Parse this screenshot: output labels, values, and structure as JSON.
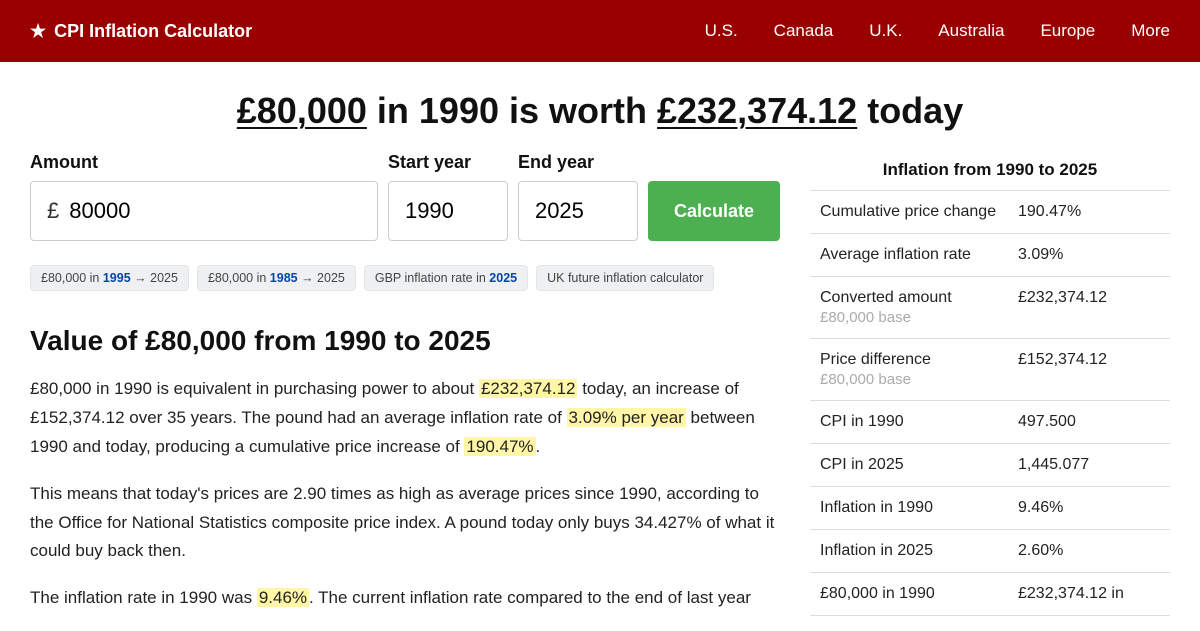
{
  "brand": {
    "star": "★",
    "name": "CPI Inflation Calculator"
  },
  "nav": [
    "U.S.",
    "Canada",
    "U.K.",
    "Australia",
    "Europe",
    "More"
  ],
  "headline": {
    "amount": "£80,000",
    "mid": " in 1990 is worth ",
    "value": "£232,374.12",
    "tail": " today"
  },
  "form": {
    "amount_label": "Amount",
    "currency": "£",
    "amount_value": "80000",
    "start_label": "Start year",
    "start_value": "1990",
    "end_label": "End year",
    "end_value": "2025",
    "button": "Calculate"
  },
  "chips": [
    {
      "pre": "£80,000 in ",
      "b": "1995",
      "post": " → 2025"
    },
    {
      "pre": "£80,000 in ",
      "b": "1985",
      "post": " → 2025"
    },
    {
      "pre": "GBP inflation rate in ",
      "b": "2025",
      "post": ""
    },
    {
      "pre": "UK future inflation calculator",
      "b": "",
      "post": ""
    }
  ],
  "section_title": "Value of £80,000 from 1990 to 2025",
  "para1": {
    "a": "£80,000 in 1990 is equivalent in purchasing power to about ",
    "h1": "£232,374.12",
    "b": " today, an increase of £152,374.12 over 35 years. The pound had an average inflation rate of ",
    "h2": "3.09% per year",
    "c": " between 1990 and today, producing a cumulative price increase of ",
    "h3": "190.47%",
    "d": "."
  },
  "para2": "This means that today's prices are 2.90 times as high as average prices since 1990, according to the Office for National Statistics composite price index. A pound today only buys 34.427% of what it could buy back then.",
  "para3": {
    "a": "The inflation rate in 1990 was ",
    "h1": "9.46%",
    "b": ". The current inflation rate compared to the end of last year"
  },
  "sidebar": {
    "title": "Inflation from 1990 to 2025",
    "rows": [
      {
        "label": "Cumulative price change",
        "sub": "",
        "val": "190.47%"
      },
      {
        "label": "Average inflation rate",
        "sub": "",
        "val": "3.09%"
      },
      {
        "label": "Converted amount",
        "sub": "£80,000 base",
        "val": "£232,374.12"
      },
      {
        "label": "Price difference",
        "sub": "£80,000 base",
        "val": "£152,374.12"
      },
      {
        "label": "CPI in 1990",
        "sub": "",
        "val": "497.500"
      },
      {
        "label": "CPI in 2025",
        "sub": "",
        "val": "1,445.077"
      },
      {
        "label": "Inflation in 1990",
        "sub": "",
        "val": "9.46%"
      },
      {
        "label": "Inflation in 2025",
        "sub": "",
        "val": "2.60%"
      },
      {
        "label": "£80,000 in 1990",
        "sub": "",
        "val": "£232,374.12 in"
      }
    ]
  }
}
